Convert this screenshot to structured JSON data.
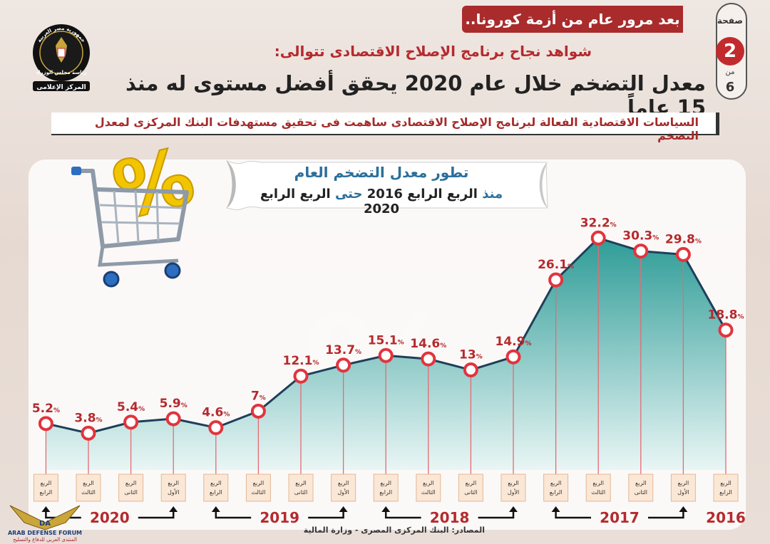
{
  "header": {
    "banner": "بعد مرور عام من أزمة كورونا..",
    "page_label": "صفحة",
    "page_number": "2",
    "page_of": "من",
    "page_total": "6",
    "subtitle": "شواهد نجاح برنامج الإصلاح الاقتصادى تتوالى:",
    "title": "معدل التضخم خلال عام 2020 يحقق أفضل مستوى له منذ 15 عاماً",
    "note": "السياسات الاقتصادية الفعالة لبرنامج الإصلاح الاقتصادى ساهمت فى تحقيق مستهدفات البنك المركزى لمعدل التضخم"
  },
  "logo": {
    "line1": "جمهورية مصر العربية",
    "line2": "رئاسة مجلس الوزراء",
    "line3": "المركز الإعلامى"
  },
  "source": "المصادر: البنك المركزى المصرى - وزارة المالية",
  "watermark": {
    "line1": "ARAB DEFENSE FORUM",
    "line2": "المنتدى العربي للدفاع والتسليح",
    "mark": "DA"
  },
  "colors": {
    "accent": "#b52a2e",
    "area": "#3fa9a3",
    "title_blue": "#2b6f9b",
    "marker": "#e2343d"
  },
  "chart_data": {
    "type": "area",
    "title": "تطور معدل التضخم العام",
    "subtitle_parts": [
      "منذ",
      "الربع الرابع 2016",
      "حتى",
      "الربع الرابع 2020"
    ],
    "unit": "%",
    "x_order": "right-to-left",
    "ylim": [
      0,
      35
    ],
    "points": [
      {
        "quarter": "الربع الرابع",
        "year": "2016",
        "value": 18.8
      },
      {
        "quarter": "الربع الأول",
        "year": "2017",
        "value": 29.8
      },
      {
        "quarter": "الربع الثانى",
        "year": "2017",
        "value": 30.3
      },
      {
        "quarter": "الربع الثالث",
        "year": "2017",
        "value": 32.2
      },
      {
        "quarter": "الربع الرابع",
        "year": "2017",
        "value": 26.1
      },
      {
        "quarter": "الربع الأول",
        "year": "2018",
        "value": 14.9
      },
      {
        "quarter": "الربع الثانى",
        "year": "2018",
        "value": 13
      },
      {
        "quarter": "الربع الثالث",
        "year": "2018",
        "value": 14.6
      },
      {
        "quarter": "الربع الرابع",
        "year": "2018",
        "value": 15.1
      },
      {
        "quarter": "الربع الأول",
        "year": "2019",
        "value": 13.7
      },
      {
        "quarter": "الربع الثانى",
        "year": "2019",
        "value": 12.1
      },
      {
        "quarter": "الربع الثالث",
        "year": "2019",
        "value": 7
      },
      {
        "quarter": "الربع الرابع",
        "year": "2019",
        "value": 4.6
      },
      {
        "quarter": "الربع الأول",
        "year": "2020",
        "value": 5.9
      },
      {
        "quarter": "الربع الثانى",
        "year": "2020",
        "value": 5.4
      },
      {
        "quarter": "الربع الثالث",
        "year": "2020",
        "value": 3.8
      },
      {
        "quarter": "الربع الرابع",
        "year": "2020",
        "value": 5.2
      }
    ],
    "years": [
      "2016",
      "2017",
      "2018",
      "2019",
      "2020"
    ]
  }
}
